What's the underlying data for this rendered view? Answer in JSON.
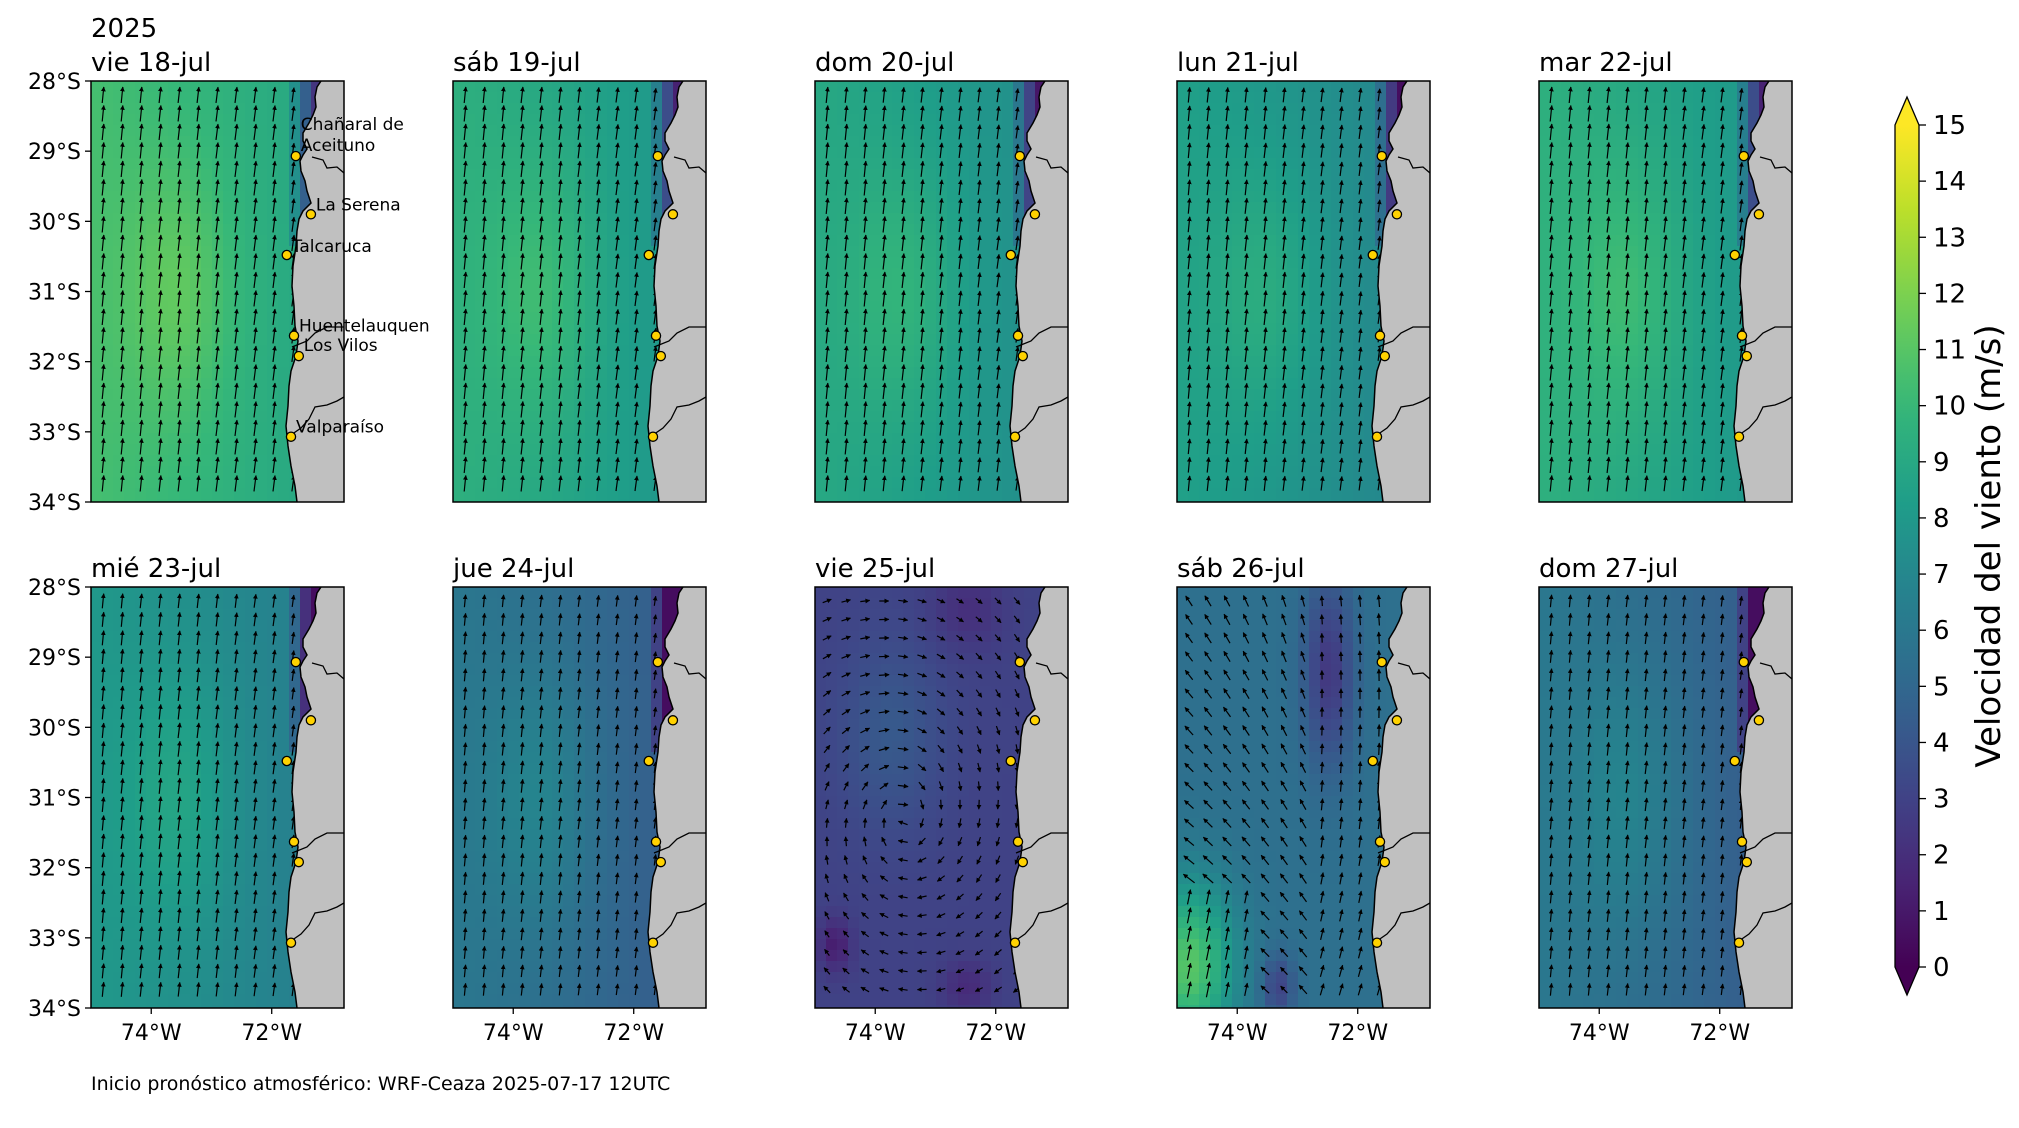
{
  "year": "2025",
  "footer": "Inicio pronóstico atmosférico: WRF-Ceaza 2025-07-17 12UTC",
  "colorbar": {
    "label": "Velocidad del viento (m/s)",
    "ticks": [
      "0",
      "1",
      "2",
      "3",
      "4",
      "5",
      "6",
      "7",
      "8",
      "9",
      "10",
      "11",
      "12",
      "13",
      "14",
      "15"
    ],
    "min": 0,
    "max": 15
  },
  "axes": {
    "lat_ticks": [
      "28°S",
      "29°S",
      "30°S",
      "31°S",
      "32°S",
      "33°S",
      "34°S"
    ],
    "lon_ticks": [
      "74°W",
      "72°W"
    ],
    "lat_range": [
      -34,
      -28
    ],
    "lon_range": [
      -75,
      -70.8
    ]
  },
  "stations": [
    {
      "name": "Chañaral de Aceituno",
      "line1": "Chañaral de",
      "line2": "Aceituno",
      "lon": -71.6,
      "lat": -29.07
    },
    {
      "name": "La Serena",
      "line1": "La Serena",
      "line2": "",
      "lon": -71.35,
      "lat": -29.9
    },
    {
      "name": "Talcaruca",
      "line1": "Talcaruca",
      "line2": "",
      "lon": -71.75,
      "lat": -30.48
    },
    {
      "name": "Huentelauquen",
      "line1": "Huentelauquen",
      "line2": "",
      "lon": -71.63,
      "lat": -31.63
    },
    {
      "name": "Los Vilos",
      "line1": "Los Vilos",
      "line2": "",
      "lon": -71.55,
      "lat": -31.92
    },
    {
      "name": "Valparaíso",
      "line1": "Valparaíso",
      "line2": "",
      "lon": -71.68,
      "lat": -33.07
    }
  ],
  "panels": [
    {
      "date": "vie 18-jul",
      "pattern": "south",
      "speed": 10.5
    },
    {
      "date": "sáb 19-jul",
      "pattern": "south",
      "speed": 9.5
    },
    {
      "date": "dom 20-jul",
      "pattern": "south",
      "speed": 9.0
    },
    {
      "date": "lun 21-jul",
      "pattern": "south",
      "speed": 8.5
    },
    {
      "date": "mar 22-jul",
      "pattern": "south",
      "speed": 9.5
    },
    {
      "date": "mié 23-jul",
      "pattern": "south",
      "speed": 8.0
    },
    {
      "date": "jue 24-jul",
      "pattern": "south",
      "speed": 6.0
    },
    {
      "date": "vie 25-jul",
      "pattern": "cyclonic",
      "speed": 3.0
    },
    {
      "date": "sáb 26-jul",
      "pattern": "mixed",
      "speed": 5.5
    },
    {
      "date": "dom 27-jul",
      "pattern": "south",
      "speed": 6.0
    }
  ]
}
